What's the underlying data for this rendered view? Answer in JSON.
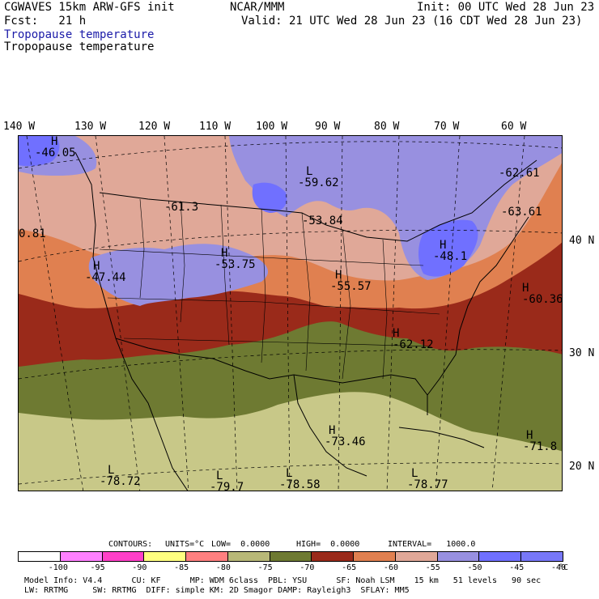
{
  "header": {
    "line1_left": "CGWAVES 15km ARW-GFS init",
    "line1_mid": "NCAR/MMM",
    "line1_right": "Init: 00 UTC Wed 28 Jun 23",
    "line2_left": "Fcst:   21 h",
    "line2_right": "Valid: 21 UTC Wed 28 Jun 23 (16 CDT Wed 28 Jun 23)",
    "title_shaded": "Tropopause temperature",
    "title_contour": "Tropopause temperature"
  },
  "longitudes": [
    "140 W",
    "130 W",
    "120 W",
    "110 W",
    "100 W",
    "90 W",
    "80 W",
    "70 W",
    "60 W"
  ],
  "latitudes": [
    "40 N",
    "30 N",
    "20 N"
  ],
  "map_labels": [
    {
      "type": "H",
      "value": "-46.05"
    },
    {
      "type": "",
      "value": "-61.3"
    },
    {
      "type": "L",
      "value": "-59.62"
    },
    {
      "type": "",
      "value": "-53.84"
    },
    {
      "type": "",
      "value": "-62.61"
    },
    {
      "type": "",
      "value": "-63.61"
    },
    {
      "type": "",
      "value": "0.81"
    },
    {
      "type": "H",
      "value": "-47.44"
    },
    {
      "type": "H",
      "value": "-53.75"
    },
    {
      "type": "H",
      "value": "-55.57"
    },
    {
      "type": "H",
      "value": "-48.1"
    },
    {
      "type": "H",
      "value": "-60.36"
    },
    {
      "type": "H",
      "value": "-62.12"
    },
    {
      "type": "H",
      "value": "-73.46"
    },
    {
      "type": "H",
      "value": "-71.8"
    },
    {
      "type": "L",
      "value": "-78.72"
    },
    {
      "type": "L",
      "value": "-79.7"
    },
    {
      "type": "L",
      "value": "-78.58"
    },
    {
      "type": "L",
      "value": "-78.77"
    }
  ],
  "contour_info": {
    "contours": "CONTOURS:",
    "units": "UNITS=°C",
    "low": "LOW=  0.0000",
    "high": "HIGH=  0.0000",
    "interval": "INTERVAL=   1000.0"
  },
  "legend": {
    "colors": [
      "#ffffff",
      "#ff80ff",
      "#ff40c8",
      "#ffff80",
      "#ff8080",
      "#b8b878",
      "#6e7a32",
      "#9a2a1a",
      "#e08050",
      "#e0a898",
      "#9890e0",
      "#7070ff",
      "#7878f8"
    ],
    "labels": [
      "-100",
      "-95",
      "-90",
      "-85",
      "-80",
      "-75",
      "-70",
      "-65",
      "-60",
      "-55",
      "-50",
      "-45",
      "-40"
    ],
    "unit": "°C"
  },
  "footer": {
    "line1": "Model Info: V4.4      CU: KF      MP: WDM 6class  PBL: YSU      SF: Noah LSM    15 km   51 levels   90 sec",
    "line2": "LW: RRTMG     SW: RRTMG  DIFF: simple KM: 2D Smagor DAMP: Rayleigh3  SFLAY: MM5"
  },
  "map_colors": {
    "tropical_light": "#c8c888",
    "tropical_dark": "#6e7a32",
    "red": "#9a2a1a",
    "orange": "#e08050",
    "pink": "#e0a898",
    "lavender": "#9890e0",
    "blue": "#7070ff"
  }
}
